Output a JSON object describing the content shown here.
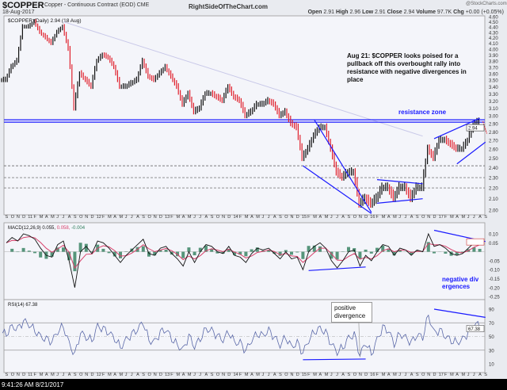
{
  "header": {
    "symbol": "$COPPER",
    "description": "Copper - Continuous Contract (EOD) CME",
    "date": "18-Aug-2017",
    "site": "RightSideOfTheChart.com",
    "copyright": "@StockCharts.com",
    "open_label": "Open",
    "open": "2.91",
    "high_label": "High",
    "high": "2.96",
    "low_label": "Low",
    "low": "2.91",
    "close_label": "Close",
    "close": "2.94",
    "volume_label": "Volume",
    "volume": "97.7K",
    "chg_label": "Chg",
    "chg": "+0.00 (+0.05%)"
  },
  "colors": {
    "panel": "#f4f5fa",
    "annotation": "#1a1aff",
    "up": "#111111",
    "down": "#e0202c",
    "macd": "#111111",
    "signal": "#d8406a",
    "hist": "#2e7d5b",
    "rsi": "#5a68a8"
  },
  "chart_data": [
    {
      "type": "line",
      "title": "$COPPER (Daily) 2.94 (18 Aug)",
      "scale": "log",
      "ylim": [
        1.95,
        4.65
      ],
      "yticks": [
        4.6,
        4.5,
        4.4,
        4.3,
        4.2,
        4.1,
        4.0,
        3.9,
        3.8,
        3.7,
        3.6,
        3.5,
        3.4,
        3.3,
        3.2,
        3.1,
        3.0,
        2.9,
        2.8,
        2.7,
        2.6,
        2.5,
        2.4,
        2.3,
        2.2,
        2.1,
        2.0
      ],
      "last_value": "2.94",
      "x": [
        "2010-09",
        "2010-10",
        "2010-11",
        "2010-12",
        "2011-01",
        "2011-02",
        "2011-03",
        "2011-04",
        "2011-05",
        "2011-06",
        "2011-07",
        "2011-08",
        "2011-09",
        "2011-10",
        "2011-11",
        "2011-12",
        "2012-01",
        "2012-02",
        "2012-03",
        "2012-04",
        "2012-05",
        "2012-06",
        "2012-07",
        "2012-08",
        "2012-09",
        "2012-10",
        "2012-11",
        "2012-12",
        "2013-01",
        "2013-02",
        "2013-03",
        "2013-04",
        "2013-05",
        "2013-06",
        "2013-07",
        "2013-08",
        "2013-09",
        "2013-10",
        "2013-11",
        "2013-12",
        "2014-01",
        "2014-02",
        "2014-03",
        "2014-04",
        "2014-05",
        "2014-06",
        "2014-07",
        "2014-08",
        "2014-09",
        "2014-10",
        "2014-11",
        "2014-12",
        "2015-01",
        "2015-02",
        "2015-03",
        "2015-04",
        "2015-05",
        "2015-06",
        "2015-07",
        "2015-08",
        "2015-09",
        "2015-10",
        "2015-11",
        "2015-12",
        "2016-01",
        "2016-02",
        "2016-03",
        "2016-04",
        "2016-05",
        "2016-06",
        "2016-07",
        "2016-08",
        "2016-09",
        "2016-10",
        "2016-11",
        "2016-12",
        "2017-01",
        "2017-02",
        "2017-03",
        "2017-04",
        "2017-05",
        "2017-06",
        "2017-07",
        "2017-08"
      ],
      "values": [
        3.5,
        3.7,
        3.8,
        4.4,
        4.4,
        4.5,
        4.3,
        4.2,
        4.1,
        4.3,
        4.4,
        4.0,
        3.1,
        3.6,
        3.5,
        3.4,
        3.8,
        3.9,
        3.85,
        3.7,
        3.4,
        3.4,
        3.45,
        3.5,
        3.8,
        3.55,
        3.5,
        3.6,
        3.7,
        3.55,
        3.4,
        3.15,
        3.3,
        3.05,
        3.1,
        3.3,
        3.3,
        3.25,
        3.2,
        3.4,
        3.25,
        3.2,
        3.0,
        3.05,
        3.15,
        3.15,
        3.2,
        3.15,
        3.0,
        3.05,
        2.9,
        2.85,
        2.5,
        2.6,
        2.75,
        2.85,
        2.85,
        2.6,
        2.35,
        2.3,
        2.35,
        2.35,
        2.05,
        2.1,
        2.05,
        2.1,
        2.2,
        2.2,
        2.1,
        2.2,
        2.2,
        2.1,
        2.2,
        2.2,
        2.6,
        2.5,
        2.7,
        2.7,
        2.65,
        2.6,
        2.6,
        2.7,
        2.88,
        2.94
      ],
      "annotations": {
        "note": "Aug 21: $COPPER looks poised for a pullback off this overbought rally into resistance with negative divergences in place",
        "resistance": "resistance zone",
        "resistance_levels": [
          2.92,
          2.95
        ],
        "support_levels": [
          2.42,
          2.3,
          2.2
        ]
      }
    },
    {
      "type": "line",
      "title": "MACD(12,26,9)",
      "macd_value": "0.055",
      "signal_value": "0.058",
      "hist_value": "-0.004",
      "ylim": [
        -0.28,
        0.14
      ],
      "yticks": [
        "0.10",
        "0.05",
        "-0.05",
        "-0.10",
        "-0.15",
        "-0.20",
        "-0.25"
      ],
      "values": [
        0.05,
        0.08,
        0.06,
        0.1,
        0.09,
        0.07,
        0.02,
        -0.02,
        -0.03,
        0.04,
        0.06,
        -0.05,
        -0.2,
        0.0,
        0.03,
        -0.01,
        0.06,
        0.05,
        0.02,
        -0.02,
        -0.06,
        -0.02,
        0.01,
        0.04,
        0.07,
        -0.01,
        -0.02,
        0.02,
        0.03,
        -0.01,
        -0.04,
        -0.08,
        0.0,
        -0.06,
        0.0,
        0.04,
        0.03,
        0.0,
        -0.01,
        0.03,
        -0.02,
        -0.03,
        -0.06,
        -0.01,
        0.02,
        0.01,
        0.02,
        -0.01,
        -0.04,
        0.0,
        -0.04,
        -0.03,
        -0.1,
        0.0,
        0.03,
        0.05,
        0.02,
        -0.05,
        -0.09,
        -0.05,
        0.0,
        0.01,
        -0.08,
        -0.02,
        -0.05,
        0.0,
        0.04,
        0.03,
        -0.02,
        0.02,
        0.01,
        -0.02,
        0.01,
        0.0,
        0.1,
        0.03,
        0.04,
        0.02,
        -0.01,
        -0.02,
        -0.01,
        0.02,
        0.05,
        0.055
      ],
      "annotation": "negative divergences"
    },
    {
      "type": "line",
      "title": "RSI(14)",
      "last_value": "67.38",
      "ylim": [
        0,
        100
      ],
      "yticks": [
        "90",
        "70",
        "50",
        "30",
        "10"
      ],
      "levels": [
        70,
        30
      ],
      "values": [
        55,
        65,
        60,
        72,
        68,
        60,
        50,
        45,
        42,
        58,
        66,
        40,
        22,
        55,
        50,
        45,
        65,
        60,
        55,
        48,
        35,
        45,
        52,
        60,
        72,
        45,
        42,
        55,
        60,
        48,
        38,
        30,
        50,
        35,
        48,
        62,
        58,
        50,
        45,
        58,
        42,
        40,
        28,
        45,
        55,
        52,
        58,
        48,
        38,
        50,
        35,
        40,
        25,
        45,
        58,
        62,
        55,
        38,
        28,
        35,
        48,
        52,
        22,
        42,
        25,
        45,
        62,
        58,
        40,
        55,
        48,
        40,
        52,
        50,
        82,
        55,
        58,
        50,
        45,
        42,
        45,
        55,
        68,
        67.38
      ],
      "annotation": "positive divergence"
    },
    {
      "type": "axis",
      "xticks": [
        "S",
        "O",
        "N",
        "D",
        "11",
        "F",
        "M",
        "A",
        "M",
        "J",
        "J",
        "A",
        "S",
        "O",
        "N",
        "D",
        "12",
        "F",
        "M",
        "A",
        "M",
        "J",
        "J",
        "A",
        "S",
        "O",
        "N",
        "D",
        "13",
        "F",
        "M",
        "A",
        "M",
        "J",
        "J",
        "A",
        "S",
        "O",
        "N",
        "D",
        "14",
        "F",
        "M",
        "A",
        "M",
        "J",
        "J",
        "A",
        "S",
        "O",
        "N",
        "D",
        "15",
        "F",
        "M",
        "A",
        "M",
        "J",
        "J",
        "A",
        "S",
        "O",
        "N",
        "D",
        "16",
        "F",
        "M",
        "A",
        "M",
        "J",
        "J",
        "A",
        "S",
        "O",
        "N",
        "D",
        "17",
        "F",
        "M",
        "A",
        "M",
        "J",
        "J",
        "A",
        "S"
      ]
    }
  ],
  "footer": {
    "timestamp": "9:41:26 AM 8/21/2017"
  }
}
